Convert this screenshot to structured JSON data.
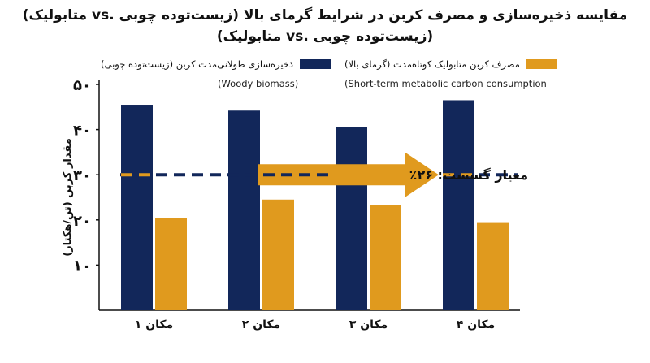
{
  "chart_data": {
    "type": "bar",
    "title_line1": "مقایسه ذخیره‌سازی و مصرف کربن در شرایط گرمای بالا (زیست‌توده چوبی .vs متابولیک)",
    "title_line2": "(زیست‌توده چوبی .vs متابولیک)",
    "ylabel": "مقدار کربن (تن/هکتار)",
    "ylim": [
      0,
      50
    ],
    "yticks": [
      "۱۰",
      "۲۰",
      "۳۰",
      "۴۰",
      "۵۰"
    ],
    "ytick_values": [
      10,
      20,
      30,
      40,
      50
    ],
    "categories": [
      "مکان ۱",
      "مکان ۲",
      "مکان ۳",
      "مکان ۴"
    ],
    "series": [
      {
        "name": "ذخیره‌سازی طولانی‌مدت کربن (زیست‌توده چوبی)",
        "subname": "(Woody biomass)",
        "color": "#12275a",
        "values": [
          45.5,
          44.2,
          40.5,
          46.5
        ]
      },
      {
        "name": "مصرف کربن متابولیک کوتاه‌مدت (گرمای بالا)",
        "subname": "(Short-term metabolic carbon consumption",
        "color": "#e09a1e",
        "values": [
          20.5,
          24.5,
          23.2,
          19.5
        ]
      }
    ],
    "threshold": {
      "value": 30,
      "label": "معیار گسست: ۲۶٪"
    },
    "arrow_color": "#e09a1e",
    "grid": false,
    "legend_position": "top"
  }
}
